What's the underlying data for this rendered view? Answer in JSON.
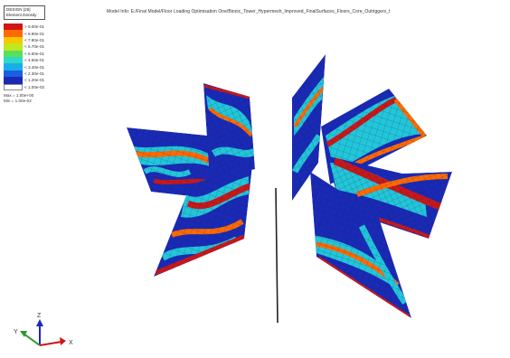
{
  "model_info": "Model Info: E:/Final Model/Floor Loading Optimisation One/Bionic_Tower_Hypermesh_Improved_FinalSurfaces_Floors_Core_Outriggers_t",
  "legend": {
    "title": "DESIGN [25]",
    "subtitle": "Element Density",
    "entries": [
      {
        "label": "> 9.00e-01",
        "color": "#d21414"
      },
      {
        "label": "< 8.90e-01",
        "color": "#ff6a00"
      },
      {
        "label": "< 7.80e-01",
        "color": "#f7c800"
      },
      {
        "label": "< 6.70e-01",
        "color": "#bfe81e"
      },
      {
        "label": "< 5.60e-01",
        "color": "#58e05a"
      },
      {
        "label": "< 4.50e-01",
        "color": "#2ed8c8"
      },
      {
        "label": "< 3.40e-01",
        "color": "#19aee8"
      },
      {
        "label": "< 2.30e-01",
        "color": "#1a5fe0"
      },
      {
        "label": "< 1.20e-01",
        "color": "#1a2ab5"
      },
      {
        "label": "< 1.00e-02",
        "color": "#ffffff"
      }
    ],
    "max_text": "Max = 1.00e+00",
    "min_text": "Min = 1.00e-02"
  },
  "triad": {
    "x": "X",
    "y": "Y",
    "z": "Z"
  },
  "colors": {
    "high": "#c8181a",
    "mid_high": "#ff6a00",
    "mid": "#22c6d8",
    "low": "#1a2ab5",
    "mesh": "#0e1a55"
  }
}
